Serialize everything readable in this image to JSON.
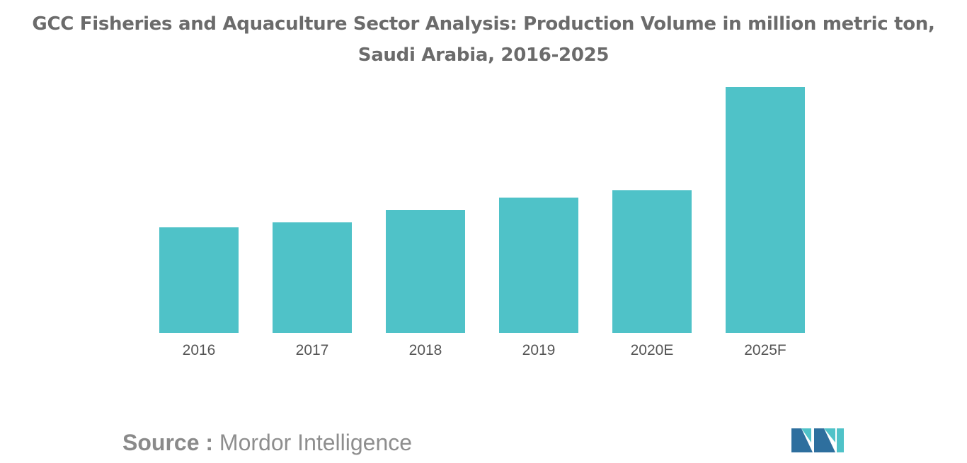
{
  "title": {
    "line1": "GCC Fisheries and Aquaculture Sector Analysis: Production Volume in million metric ton,",
    "line2": "Saudi Arabia, 2016-2025"
  },
  "chart_data": {
    "type": "bar",
    "categories": [
      "2016",
      "2017",
      "2018",
      "2019",
      "2020E",
      "2025F"
    ],
    "values": [
      0.43,
      0.45,
      0.5,
      0.55,
      0.58,
      1.0
    ],
    "title": "GCC Fisheries and Aquaculture Sector Analysis: Production Volume in million metric ton, Saudi Arabia, 2016-2025",
    "xlabel": "",
    "ylabel": "",
    "ylim": [
      0,
      1.0
    ],
    "grid": false,
    "legend": "none",
    "bar_color": "#4fc2c8"
  },
  "source": {
    "label": "Source :",
    "value": "Mordor Intelligence"
  },
  "logo": {
    "name": "mordor-intelligence-logo",
    "colors": [
      "#2e6f9e",
      "#4fc2c8"
    ]
  }
}
